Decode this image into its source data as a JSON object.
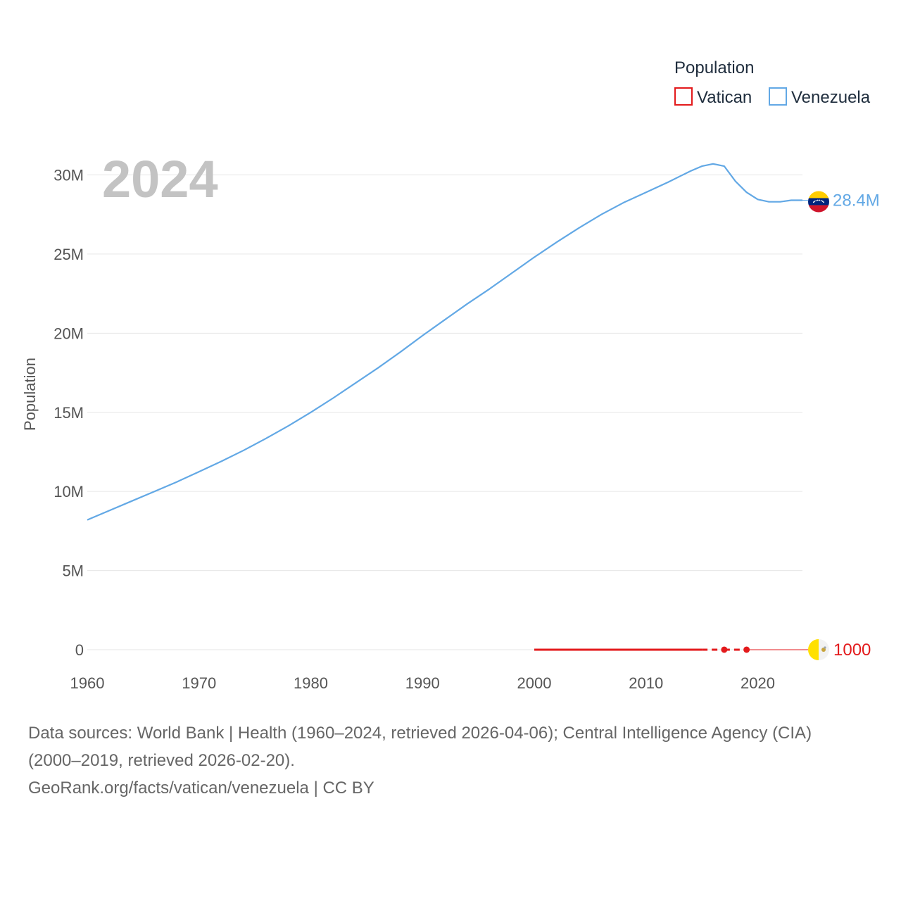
{
  "chart_data": {
    "type": "line",
    "year_label": "2024",
    "ylabel": "Population",
    "legend": {
      "title": "Population",
      "position": "top-right"
    },
    "xlim": [
      1960,
      2024
    ],
    "ylim": [
      0,
      32000000
    ],
    "x_ticks": [
      {
        "value": 1960,
        "label": "1960"
      },
      {
        "value": 1970,
        "label": "1970"
      },
      {
        "value": 1980,
        "label": "1980"
      },
      {
        "value": 1990,
        "label": "1990"
      },
      {
        "value": 2000,
        "label": "2000"
      },
      {
        "value": 2010,
        "label": "2010"
      },
      {
        "value": 2020,
        "label": "2020"
      }
    ],
    "y_ticks": [
      {
        "value": 0,
        "label": "0"
      },
      {
        "value": 5000000,
        "label": "5M"
      },
      {
        "value": 10000000,
        "label": "10M"
      },
      {
        "value": 15000000,
        "label": "15M"
      },
      {
        "value": 20000000,
        "label": "20M"
      },
      {
        "value": 25000000,
        "label": "25M"
      },
      {
        "value": 30000000,
        "label": "30M"
      }
    ],
    "series": [
      {
        "name": "Vatican",
        "color": "#e31a1c",
        "flag_icon": "vatican-flag-icon",
        "end_label": "1000",
        "x": [
          2000,
          2015,
          2017,
          2019,
          2024
        ],
        "values": [
          1000,
          1000,
          1000,
          1000,
          1000
        ],
        "segment_styles": [
          "solid",
          "dashed",
          "dashed",
          "thin"
        ],
        "markers_at": [
          2017,
          2019
        ]
      },
      {
        "name": "Venezuela",
        "color": "#62a8e5",
        "flag_icon": "venezuela-flag-icon",
        "end_label": "28.4M",
        "x": [
          1960,
          1962,
          1964,
          1966,
          1968,
          1970,
          1972,
          1974,
          1976,
          1978,
          1980,
          1982,
          1984,
          1986,
          1988,
          1990,
          1992,
          1994,
          1996,
          1998,
          2000,
          2002,
          2004,
          2006,
          2008,
          2010,
          2012,
          2013,
          2014,
          2015,
          2016,
          2017,
          2018,
          2019,
          2020,
          2021,
          2022,
          2023,
          2024
        ],
        "values": [
          8200000,
          8800000,
          9400000,
          10000000,
          10600000,
          11250000,
          11900000,
          12600000,
          13350000,
          14150000,
          15000000,
          15900000,
          16850000,
          17800000,
          18800000,
          19850000,
          20850000,
          21850000,
          22800000,
          23800000,
          24800000,
          25750000,
          26650000,
          27500000,
          28250000,
          28900000,
          29550000,
          29900000,
          30250000,
          30550000,
          30700000,
          30550000,
          29600000,
          28900000,
          28450000,
          28300000,
          28300000,
          28400000,
          28400000
        ]
      }
    ]
  },
  "footer": {
    "sources_line1": "Data sources: World Bank | Health (1960–2024, retrieved 2026-04-06); Central Intelligence Agency (CIA)",
    "sources_line2": "(2000–2019, retrieved 2026-02-20).",
    "attribution": "GeoRank.org/facts/vatican/venezuela | CC BY"
  }
}
